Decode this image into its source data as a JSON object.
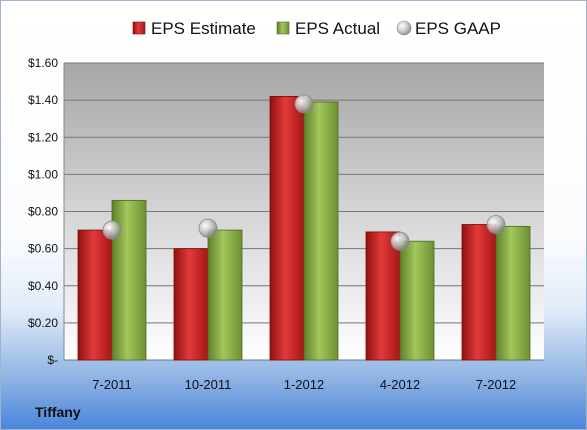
{
  "company_label": "Tiffany",
  "chart_data": {
    "type": "bar",
    "categories": [
      "7-2011",
      "10-2011",
      "1-2012",
      "4-2012",
      "7-2012"
    ],
    "series": [
      {
        "name": "EPS Estimate",
        "kind": "bar",
        "color": "#d42a2a",
        "values": [
          0.7,
          0.6,
          1.42,
          0.69,
          0.73
        ]
      },
      {
        "name": "EPS Actual",
        "kind": "bar",
        "color": "#8db34a",
        "values": [
          0.86,
          0.7,
          1.39,
          0.64,
          0.72
        ]
      },
      {
        "name": "EPS GAAP",
        "kind": "scatter",
        "color": "#c8c8c8",
        "values": [
          0.7,
          0.71,
          1.38,
          0.64,
          0.73
        ]
      }
    ],
    "ylim": [
      0,
      1.6
    ],
    "yticks": [
      0,
      0.2,
      0.4,
      0.6,
      0.8,
      1.0,
      1.2,
      1.4,
      1.6
    ],
    "ytick_labels": [
      "$-",
      "$0.20",
      "$0.40",
      "$0.60",
      "$0.80",
      "$1.00",
      "$1.20",
      "$1.40",
      "$1.60"
    ],
    "grid": true,
    "legend_position": "top"
  }
}
